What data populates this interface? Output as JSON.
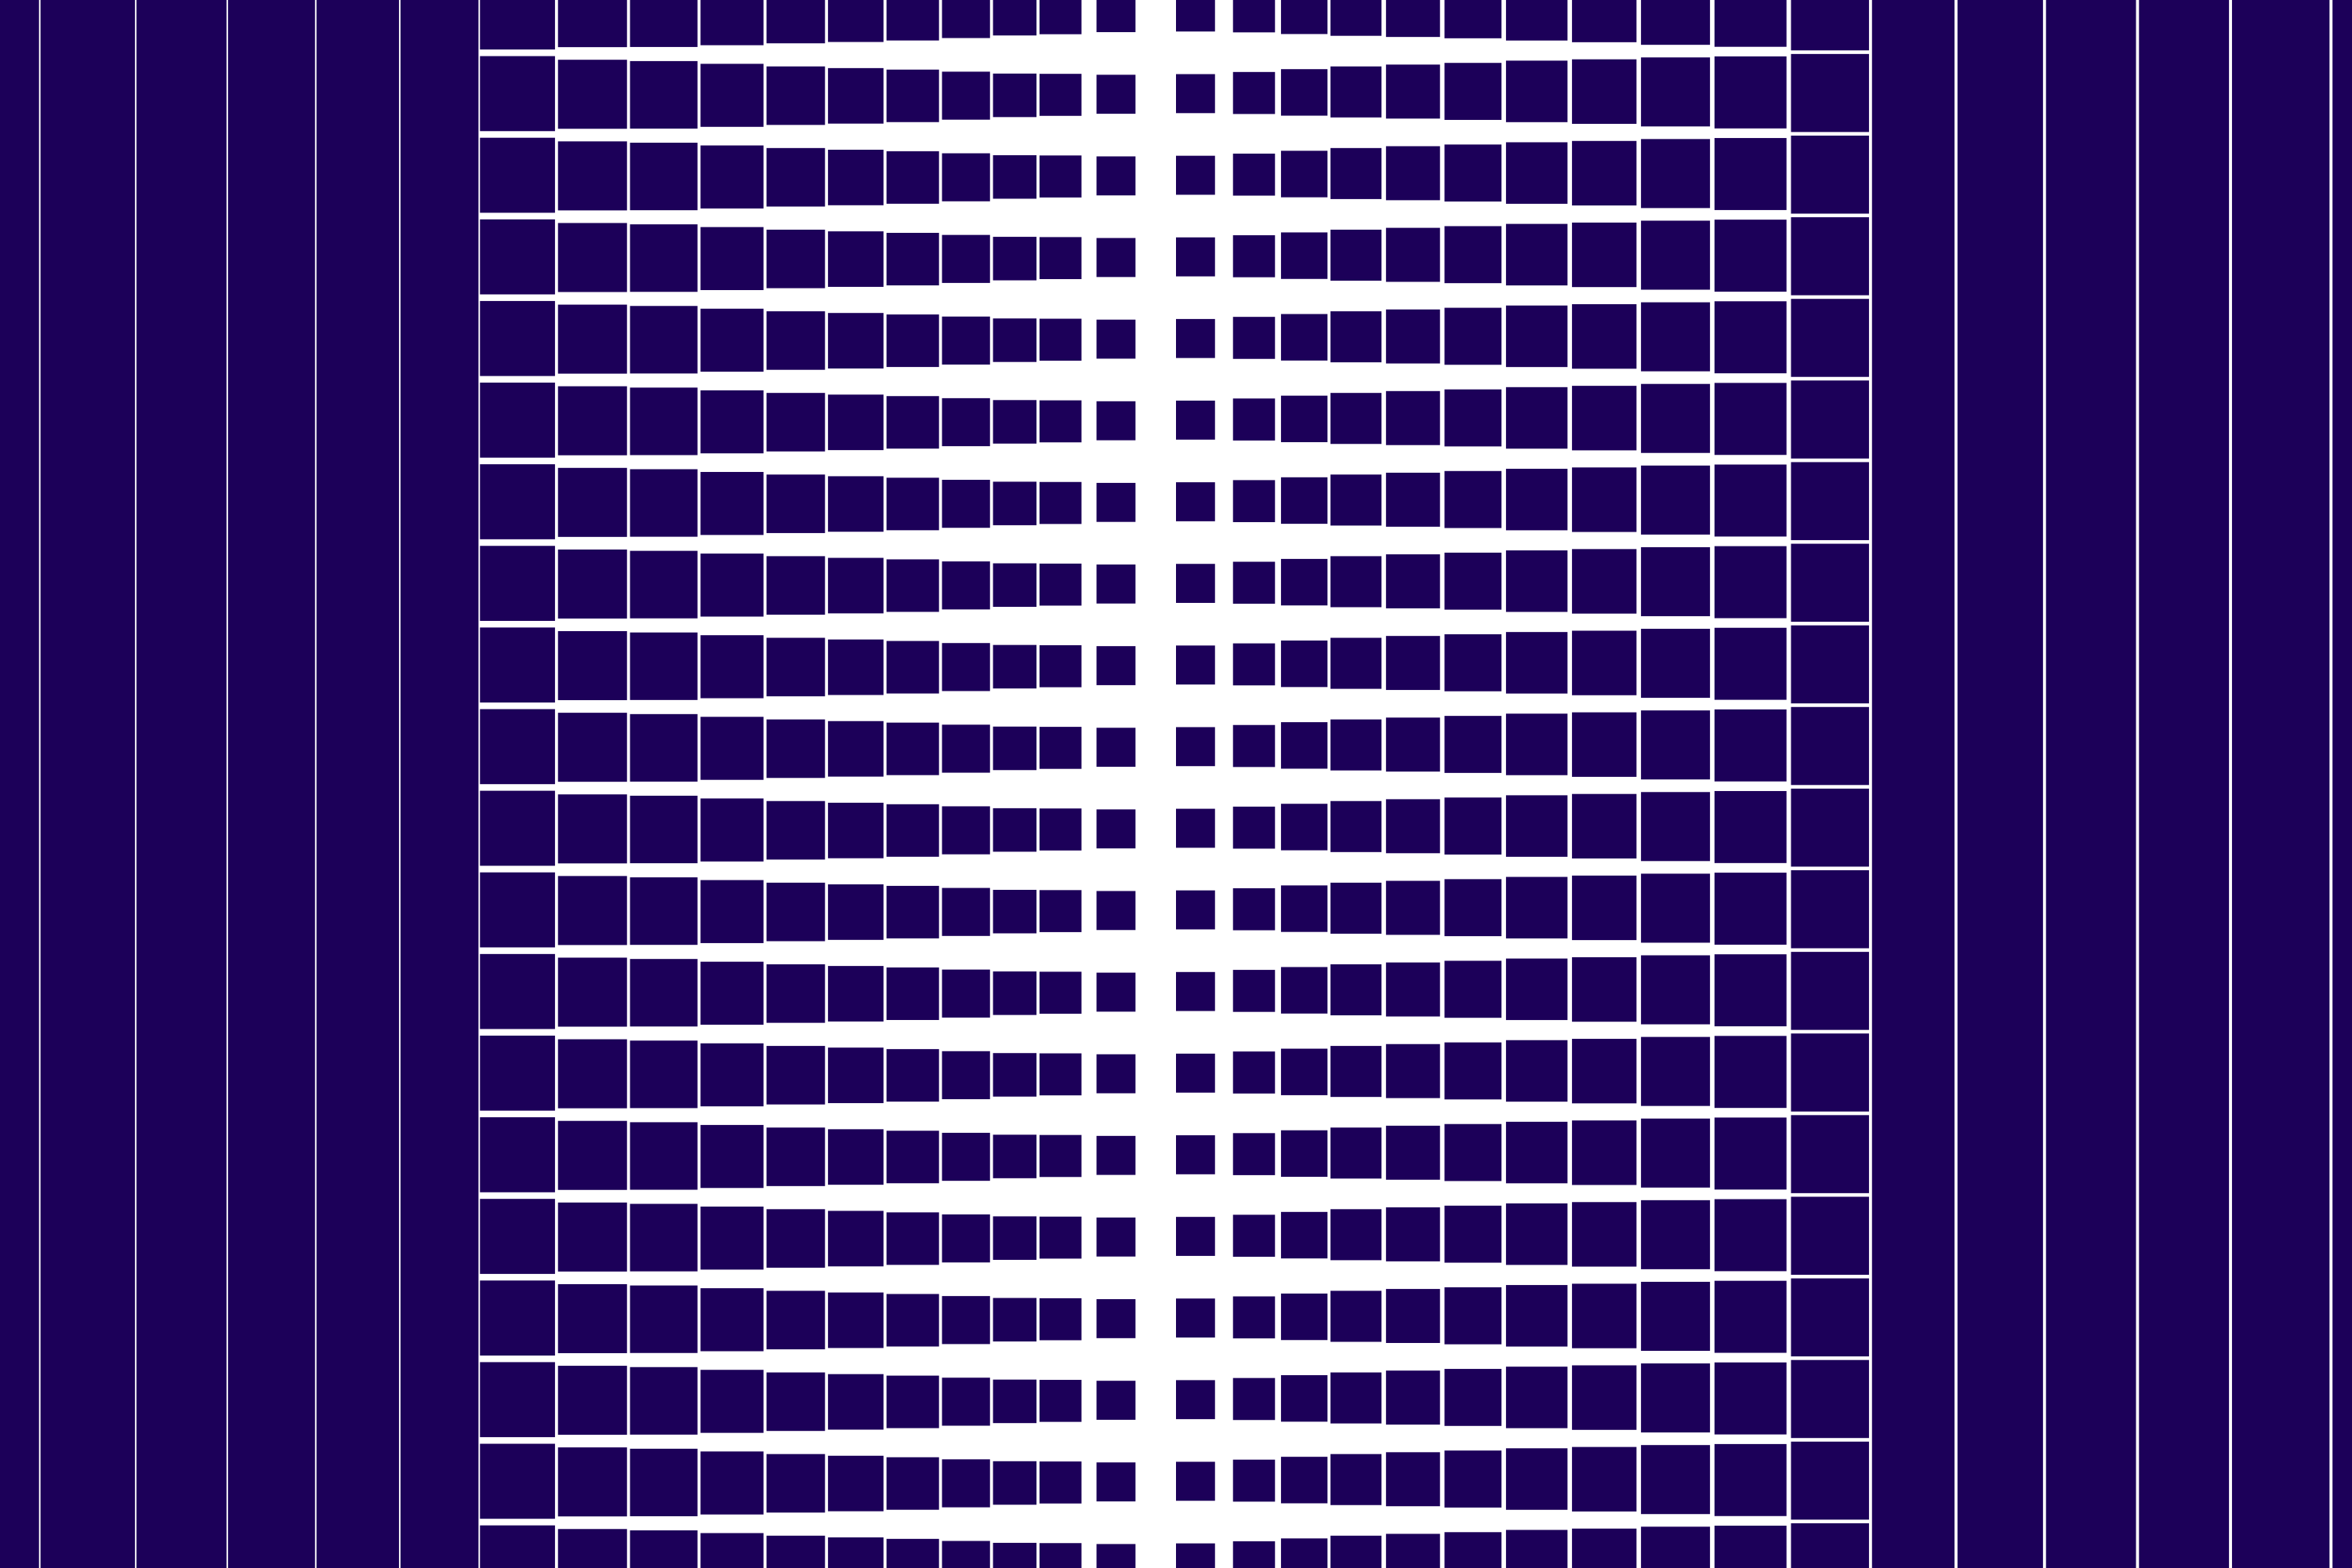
{
  "artwork": {
    "kind": "op-art grid pattern",
    "colors": {
      "ink": "#1c0059",
      "paper": "#ffffff"
    }
  }
}
